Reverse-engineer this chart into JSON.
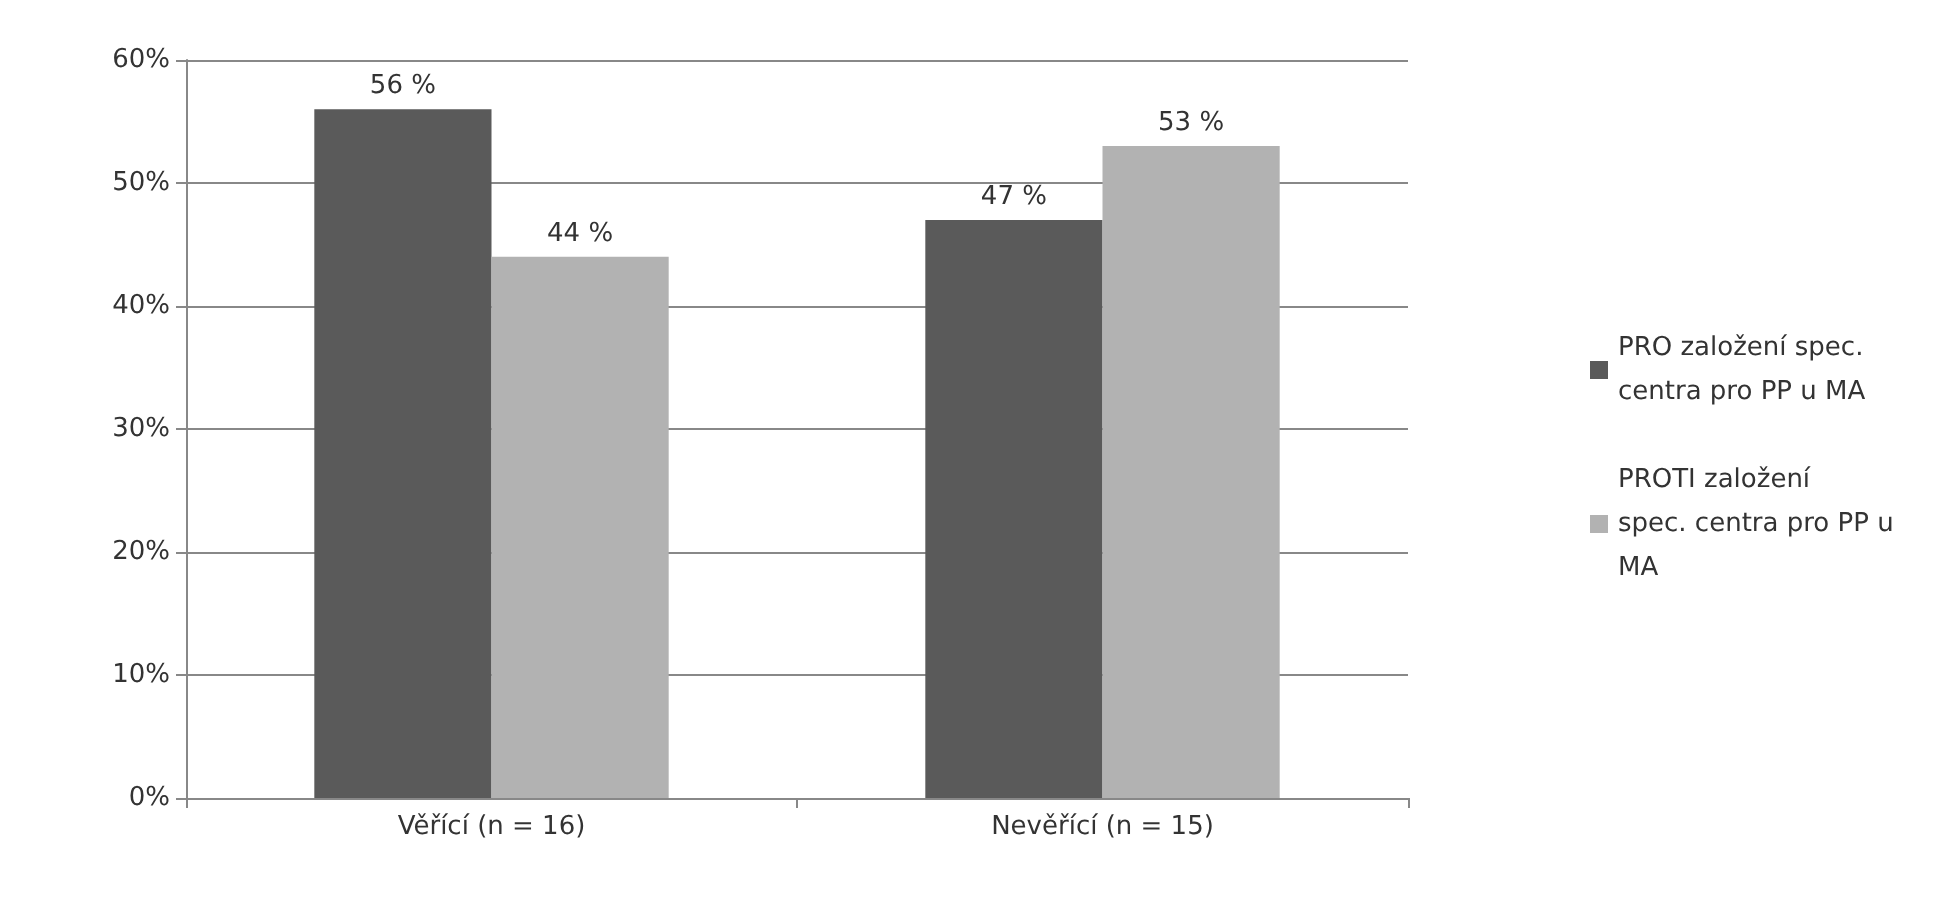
{
  "chart_data": {
    "type": "bar",
    "categories": [
      "Věřící (n = 16)",
      "Nevěřící (n = 15)"
    ],
    "series": [
      {
        "name": "PRO založení spec. centra pro PP u MA",
        "color": "#5a5a5a",
        "values": [
          56,
          47
        ],
        "value_labels": [
          "56 %",
          "47 %"
        ]
      },
      {
        "name": "PROTI založení spec. centra pro PP u MA",
        "color": "#b2b2b2",
        "values": [
          44,
          53
        ],
        "value_labels": [
          "44 %",
          "53 %"
        ]
      }
    ],
    "ylim": [
      0,
      60
    ],
    "yticks": [
      {
        "value": 0,
        "label": "0%"
      },
      {
        "value": 10,
        "label": "10%"
      },
      {
        "value": 20,
        "label": "20%"
      },
      {
        "value": 30,
        "label": "30%"
      },
      {
        "value": 40,
        "label": "40%"
      },
      {
        "value": 50,
        "label": "50%"
      },
      {
        "value": 60,
        "label": "60%"
      }
    ],
    "grid": "y",
    "legend": "right"
  }
}
